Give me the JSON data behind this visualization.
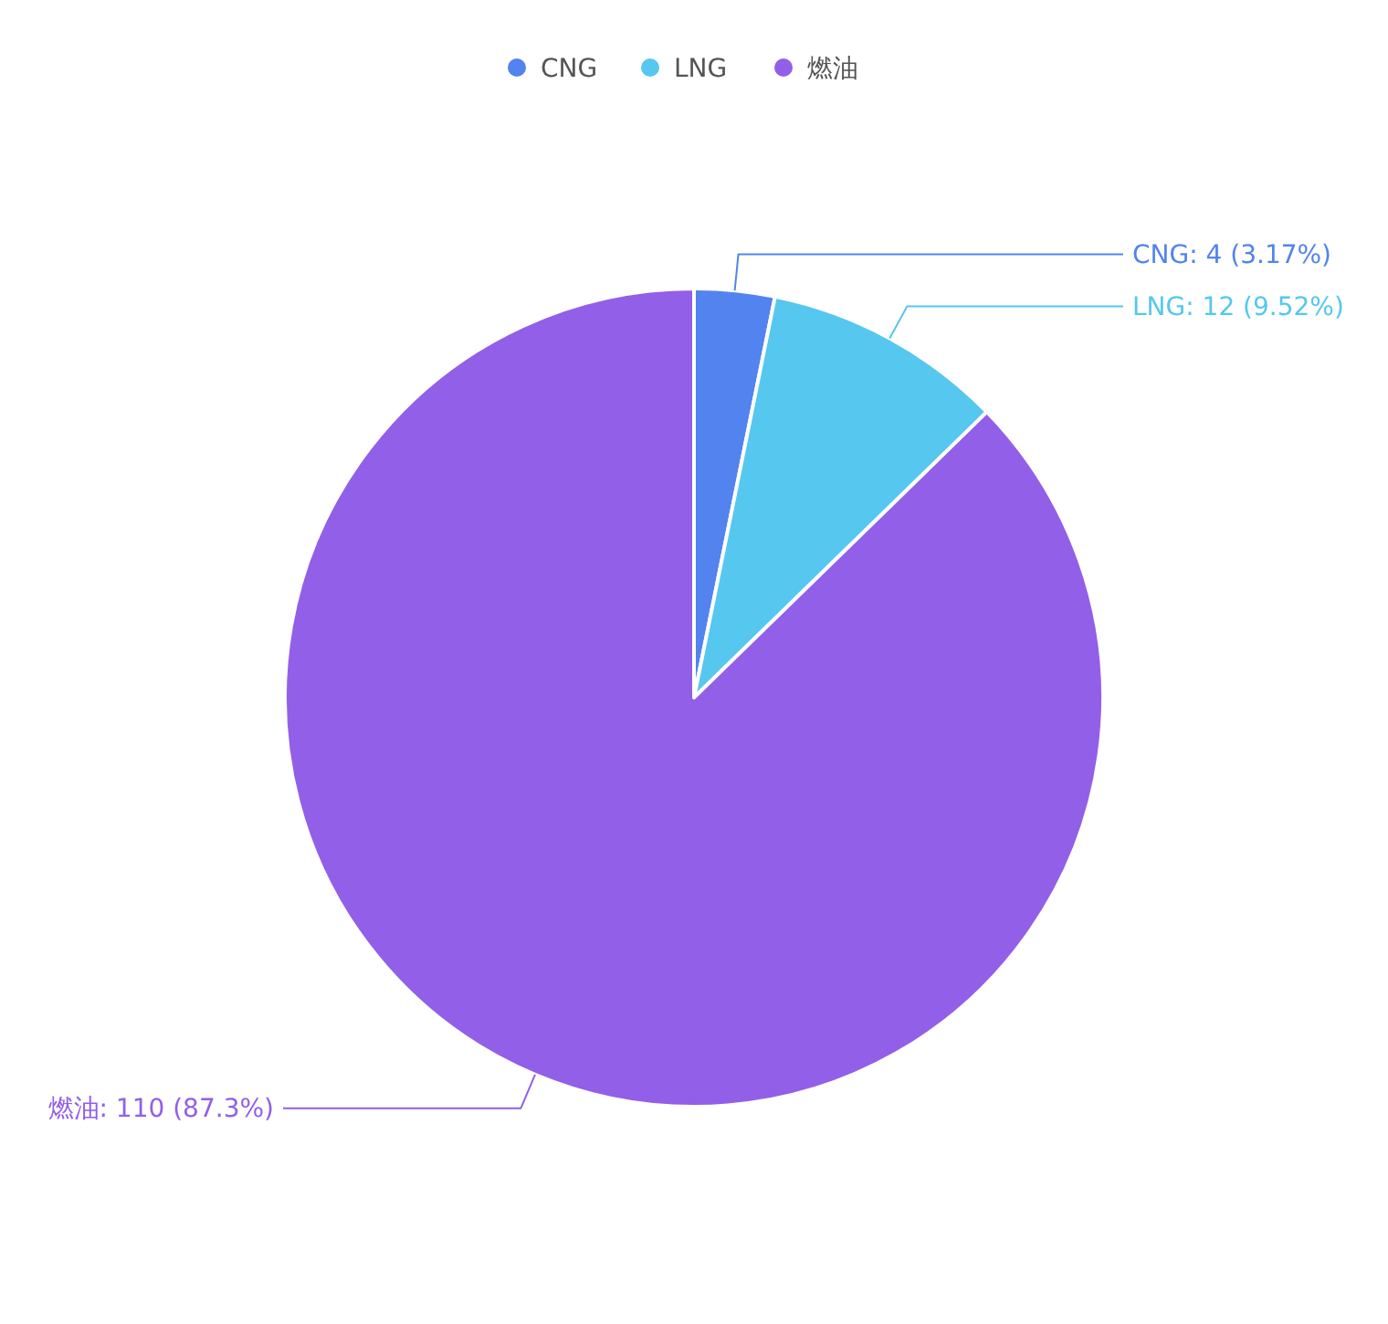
{
  "chart_data": {
    "type": "pie",
    "categories": [
      "CNG",
      "LNG",
      "燃油"
    ],
    "values": [
      4,
      12,
      110
    ],
    "colors": [
      "#5383ef",
      "#56c7ef",
      "#925fe8"
    ],
    "value_labels": [
      "CNG: 4 (3.17%)",
      "LNG: 12 (9.52%)",
      "燃油: 110 (87.3%)"
    ],
    "legend": "top"
  }
}
